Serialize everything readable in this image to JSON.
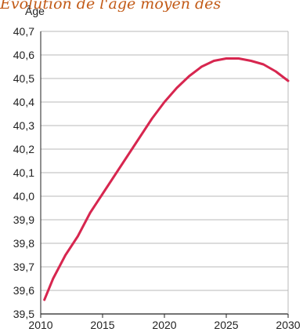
{
  "header": {
    "title_fragment": "Évolution de l'âge moyen des"
  },
  "colors": {
    "line": "#d7264f",
    "grid": "#b9b9b9",
    "axis": "#222222",
    "title": "#c25a16"
  },
  "chart_data": {
    "type": "line",
    "title": "",
    "xlabel": "",
    "ylabel": "Âge",
    "xlim": [
      2010,
      2030
    ],
    "ylim": [
      39.5,
      40.7
    ],
    "x_ticks": [
      "2010",
      "2015",
      "2020",
      "2025",
      "2030"
    ],
    "y_ticks": [
      "39,5",
      "39,6",
      "39,7",
      "39,8",
      "39,9",
      "40,0",
      "40,1",
      "40,2",
      "40,3",
      "40,4",
      "40,5",
      "40,6",
      "40,7"
    ],
    "grid": true,
    "series": [
      {
        "x": [
          2010.3,
          2011.0,
          2012.0,
          2013.0,
          2014.0,
          2015.0,
          2016.0,
          2017.0,
          2018.0,
          2019.0,
          2020.0,
          2021.0,
          2022.0,
          2023.0,
          2024.0,
          2025.0,
          2026.0,
          2027.0,
          2028.0,
          2029.0,
          2030.0
        ],
        "y": [
          39.56,
          39.65,
          39.75,
          39.83,
          39.93,
          40.01,
          40.09,
          40.17,
          40.25,
          40.33,
          40.4,
          40.46,
          40.51,
          40.55,
          40.575,
          40.585,
          40.585,
          40.575,
          40.56,
          40.53,
          40.49
        ]
      }
    ]
  }
}
